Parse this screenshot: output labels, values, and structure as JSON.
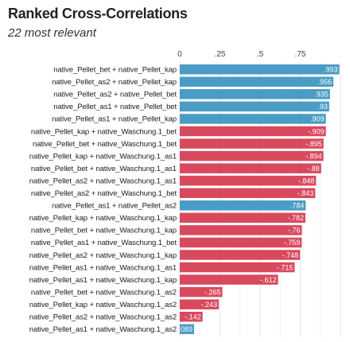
{
  "chart_data": {
    "type": "bar",
    "orientation": "horizontal",
    "title": "Ranked Cross-Correlations",
    "subtitle": "22 most relevant",
    "xlim": [
      0,
      1
    ],
    "xticks": [
      {
        "value": 0,
        "label": "0"
      },
      {
        "value": 0.25,
        "label": ".25"
      },
      {
        "value": 0.5,
        "label": ".5"
      },
      {
        "value": 0.75,
        "label": ".75"
      }
    ],
    "grid": true,
    "colors": {
      "positive": "#4a9cc6",
      "negative": "#d9495e"
    },
    "categories": [
      "native_Pellet_bet + native_Pellet_kap",
      "native_Pellet_as2 + native_Pellet_kap",
      "native_Pellet_as2 + native_Pellet_bet",
      "native_Pellet_as1 + native_Pellet_bet",
      "native_Pellet_as1 + native_Pellet_kap",
      "native_Pellet_kap + native_Waschung.1_bet",
      "native_Pellet_bet + native_Waschung.1_bet",
      "native_Pellet_kap + native_Waschung.1_as1",
      "native_Pellet_bet + native_Waschung.1_as1",
      "native_Pellet_as2 + native_Waschung.1_as1",
      "native_Pellet_as2 + native_Waschung.1_bet",
      "native_Pellet_as1 + native_Pellet_as2",
      "native_Pellet_kap + native_Waschung.1_kap",
      "native_Pellet_bet + native_Waschung.1_kap",
      "native_Pellet_as1 + native_Waschung.1_bet",
      "native_Pellet_as2 + native_Waschung.1_kap",
      "native_Pellet_as1 + native_Waschung.1_as1",
      "native_Pellet_as1 + native_Waschung.1_kap",
      "native_Pellet_bet + native_Waschung.1_as2",
      "native_Pellet_kap + native_Waschung.1_as2",
      "native_Pellet_as2 + native_Waschung.1_as2",
      "native_Pellet_as1 + native_Waschung.1_as2"
    ],
    "values": [
      0.993,
      0.956,
      0.935,
      0.93,
      0.909,
      -0.909,
      -0.895,
      -0.894,
      -0.88,
      -0.848,
      -0.843,
      0.784,
      -0.782,
      -0.76,
      -0.759,
      -0.748,
      -0.715,
      -0.612,
      -0.265,
      -0.243,
      -0.142,
      0.089
    ],
    "value_labels": [
      ".993",
      ".956",
      ".935",
      ".93",
      ".909",
      "-.909",
      "-.895",
      "-.894",
      "-.88",
      "-.848",
      "-.843",
      ".784",
      "-.782",
      "-.76",
      "-.759",
      "-.748",
      "-.715",
      "-.612",
      "-.265",
      "-.243",
      "-.142",
      ".089"
    ]
  }
}
